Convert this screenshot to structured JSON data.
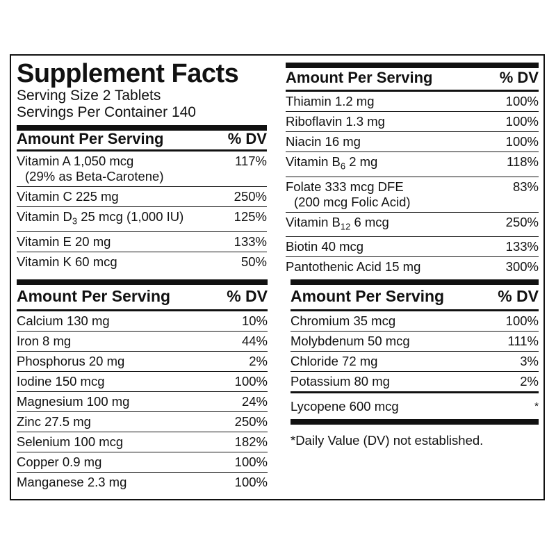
{
  "header": {
    "title": "Supplement Facts",
    "serving_size": "Serving Size 2 Tablets",
    "servings_per_container": "Servings Per Container 140"
  },
  "section_vitamins_a": {
    "col_amount": "Amount Per Serving",
    "col_dv": "% DV",
    "rows": [
      {
        "name": "Vitamin A 1,050 mcg",
        "sub": "(29% as Beta-Carotene)",
        "dv": "117%"
      },
      {
        "name": "Vitamin C 225 mg",
        "dv": "250%"
      },
      {
        "name_pre": "Vitamin D",
        "name_sub": "3",
        "name_post": " 25 mcg (1,000 IU)",
        "dv": "125%"
      },
      {
        "name": "Vitamin E 20 mg",
        "dv": "133%"
      },
      {
        "name": "Vitamin K 60 mcg",
        "dv": "50%"
      }
    ]
  },
  "section_vitamins_b": {
    "col_amount": "Amount Per Serving",
    "col_dv": "% DV",
    "rows": [
      {
        "name": "Thiamin 1.2 mg",
        "dv": "100%"
      },
      {
        "name": "Riboflavin 1.3 mg",
        "dv": "100%"
      },
      {
        "name": "Niacin 16 mg",
        "dv": "100%"
      },
      {
        "name_pre": "Vitamin B",
        "name_sub": "6",
        "name_post": " 2 mg",
        "dv": "118%"
      },
      {
        "name": "Folate 333 mcg DFE",
        "sub": "(200 mcg Folic Acid)",
        "dv": "83%"
      },
      {
        "name_pre": "Vitamin B",
        "name_sub": "12",
        "name_post": " 6 mcg",
        "dv": "250%"
      },
      {
        "name": "Biotin 40 mcg",
        "dv": "133%"
      },
      {
        "name": "Pantothenic Acid 15 mg",
        "dv": "300%"
      }
    ]
  },
  "section_minerals_a": {
    "col_amount": "Amount Per Serving",
    "col_dv": "% DV",
    "rows": [
      {
        "name": "Calcium 130 mg",
        "dv": "10%"
      },
      {
        "name": "Iron 8 mg",
        "dv": "44%"
      },
      {
        "name": "Phosphorus 20 mg",
        "dv": "2%"
      },
      {
        "name": "Iodine 150 mcg",
        "dv": "100%"
      },
      {
        "name": "Magnesium 100 mg",
        "dv": "24%"
      },
      {
        "name": "Zinc 27.5 mg",
        "dv": "250%"
      },
      {
        "name": "Selenium 100 mcg",
        "dv": "182%"
      },
      {
        "name": "Copper 0.9 mg",
        "dv": "100%"
      },
      {
        "name": "Manganese 2.3 mg",
        "dv": "100%"
      }
    ]
  },
  "section_minerals_b": {
    "col_amount": "Amount Per Serving",
    "col_dv": "% DV",
    "rows": [
      {
        "name": "Chromium 35 mcg",
        "dv": "100%"
      },
      {
        "name": "Molybdenum 50 mcg",
        "dv": "111%"
      },
      {
        "name": "Chloride 72 mg",
        "dv": "3%"
      },
      {
        "name": "Potassium 80 mg",
        "dv": "2%"
      }
    ],
    "lycopene": {
      "name": "Lycopene 600 mcg",
      "dv": "*"
    }
  },
  "footnote": "*Daily Value (DV) not established."
}
